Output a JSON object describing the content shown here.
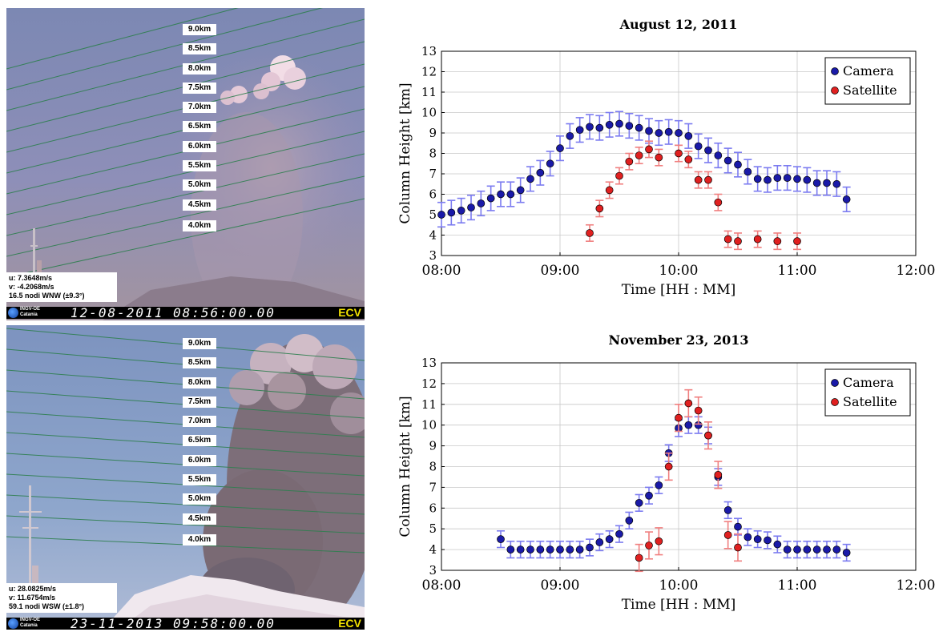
{
  "camera_panels": [
    {
      "altitude_labels": [
        "9.0km",
        "8.5km",
        "8.0km",
        "7.5km",
        "7.0km",
        "6.5km",
        "6.0km",
        "5.5km",
        "5.0km",
        "4.5km",
        "4.0km"
      ],
      "wind": {
        "u": "u: 7.3648m/s",
        "v": "v: -4.2068m/s",
        "speed": "16.5 nodi WNW (±9.3°)"
      },
      "logo_text_1": "INGV-OE",
      "logo_text_2": "Catania",
      "timestamp": "12-08-2011 08:56:00.00",
      "camera_code": "ECV"
    },
    {
      "altitude_labels": [
        "9.0km",
        "8.5km",
        "8.0km",
        "7.5km",
        "7.0km",
        "6.5km",
        "6.0km",
        "5.5km",
        "5.0km",
        "4.5km",
        "4.0km"
      ],
      "wind": {
        "u": "u: 28.0825m/s",
        "v": "v: 11.6754m/s",
        "speed": "59.1 nodi WSW (±1.8°)"
      },
      "logo_text_1": "INGV-OE",
      "logo_text_2": "Catania",
      "timestamp": "23-11-2013 09:58:00.00",
      "camera_code": "ECV"
    }
  ],
  "colors": {
    "camera": "#1a1aa8",
    "camera_err": "#7b7bf0",
    "satellite": "#e02020",
    "satellite_err": "#f07f7f"
  },
  "chart_data": [
    {
      "type": "scatter",
      "title": "August 12, 2011",
      "xlabel": "Time [HH : MM]",
      "ylabel": "Column Height [km]",
      "xlim": [
        "08:00",
        "12:00"
      ],
      "xticks": [
        "08:00",
        "09:00",
        "10:00",
        "11:00",
        "12:00"
      ],
      "ylim": [
        3,
        13
      ],
      "yticks": [
        3,
        4,
        5,
        6,
        7,
        8,
        9,
        10,
        11,
        12,
        13
      ],
      "grid": true,
      "legend_position": "top-right",
      "series": [
        {
          "name": "Camera",
          "error": 0.6,
          "x": [
            "08:00",
            "08:05",
            "08:10",
            "08:15",
            "08:20",
            "08:25",
            "08:30",
            "08:35",
            "08:40",
            "08:45",
            "08:50",
            "08:55",
            "09:00",
            "09:05",
            "09:10",
            "09:15",
            "09:20",
            "09:25",
            "09:30",
            "09:35",
            "09:40",
            "09:45",
            "09:50",
            "09:55",
            "10:00",
            "10:05",
            "10:10",
            "10:15",
            "10:20",
            "10:25",
            "10:30",
            "10:35",
            "10:40",
            "10:45",
            "10:50",
            "10:55",
            "11:00",
            "11:05",
            "11:10",
            "11:15",
            "11:20",
            "11:25"
          ],
          "y": [
            5.0,
            5.1,
            5.2,
            5.35,
            5.55,
            5.8,
            6.0,
            6.0,
            6.2,
            6.75,
            7.05,
            7.5,
            8.25,
            8.85,
            9.15,
            9.3,
            9.25,
            9.4,
            9.45,
            9.35,
            9.25,
            9.1,
            9.0,
            9.05,
            9.0,
            8.85,
            8.35,
            8.15,
            7.9,
            7.65,
            7.45,
            7.1,
            6.75,
            6.7,
            6.8,
            6.8,
            6.75,
            6.7,
            6.55,
            6.55,
            6.5,
            5.75
          ]
        },
        {
          "name": "Satellite",
          "error": 0.4,
          "x": [
            "09:15",
            "09:20",
            "09:25",
            "09:30",
            "09:35",
            "09:40",
            "09:45",
            "09:50",
            "10:00",
            "10:05",
            "10:10",
            "10:15",
            "10:20",
            "10:25",
            "10:30",
            "10:40",
            "10:50",
            "11:00"
          ],
          "y": [
            4.1,
            5.3,
            6.2,
            6.9,
            7.6,
            7.9,
            8.2,
            7.8,
            8.0,
            7.7,
            6.7,
            6.7,
            5.6,
            3.8,
            3.7,
            3.8,
            3.7,
            3.7
          ]
        }
      ]
    },
    {
      "type": "scatter",
      "title": "November 23, 2013",
      "xlabel": "Time [HH : MM]",
      "ylabel": "Column Height [km]",
      "xlim": [
        "08:00",
        "12:00"
      ],
      "xticks": [
        "08:00",
        "09:00",
        "10:00",
        "11:00",
        "12:00"
      ],
      "ylim": [
        3,
        13
      ],
      "yticks": [
        3,
        4,
        5,
        6,
        7,
        8,
        9,
        10,
        11,
        12,
        13
      ],
      "grid": true,
      "legend_position": "top-right",
      "series": [
        {
          "name": "Camera",
          "error": 0.4,
          "x": [
            "08:30",
            "08:35",
            "08:40",
            "08:45",
            "08:50",
            "08:55",
            "09:00",
            "09:05",
            "09:10",
            "09:15",
            "09:20",
            "09:25",
            "09:30",
            "09:35",
            "09:40",
            "09:45",
            "09:50",
            "09:55",
            "10:00",
            "10:05",
            "10:10",
            "10:15",
            "10:20",
            "10:25",
            "10:30",
            "10:35",
            "10:40",
            "10:45",
            "10:50",
            "10:55",
            "11:00",
            "11:05",
            "11:10",
            "11:15",
            "11:20",
            "11:25"
          ],
          "y": [
            4.5,
            4.0,
            4.0,
            4.0,
            4.0,
            4.0,
            4.0,
            4.0,
            4.0,
            4.1,
            4.35,
            4.5,
            4.75,
            5.4,
            6.25,
            6.6,
            7.1,
            8.65,
            9.85,
            10.0,
            10.0,
            9.5,
            7.5,
            5.9,
            5.1,
            4.6,
            4.5,
            4.45,
            4.25,
            4.0,
            4.0,
            4.0,
            4.0,
            4.0,
            4.0,
            3.85
          ]
        },
        {
          "name": "Satellite",
          "error": 0.65,
          "x": [
            "09:40",
            "09:45",
            "09:50",
            "09:55",
            "10:00",
            "10:05",
            "10:10",
            "10:15",
            "10:20",
            "10:25",
            "10:30"
          ],
          "y": [
            3.6,
            4.2,
            4.4,
            8.0,
            10.35,
            11.05,
            10.7,
            9.5,
            7.6,
            4.7,
            4.1
          ]
        }
      ]
    }
  ]
}
